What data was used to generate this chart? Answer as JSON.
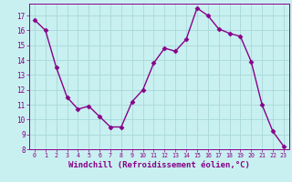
{
  "x": [
    0,
    1,
    2,
    3,
    4,
    5,
    6,
    7,
    8,
    9,
    10,
    11,
    12,
    13,
    14,
    15,
    16,
    17,
    18,
    19,
    20,
    21,
    22,
    23
  ],
  "y": [
    16.7,
    16.0,
    13.5,
    11.5,
    10.7,
    10.9,
    10.2,
    9.5,
    9.5,
    11.2,
    12.0,
    13.8,
    14.8,
    14.6,
    15.4,
    17.5,
    17.0,
    16.1,
    15.8,
    15.6,
    13.9,
    11.0,
    9.2,
    8.2
  ],
  "line_color": "#880088",
  "marker": "D",
  "marker_size": 2.5,
  "linewidth": 1.0,
  "xlabel": "Windchill (Refroidissement éolien,°C)",
  "xlabel_fontsize": 6.5,
  "bg_color": "#c8f0f0",
  "grid_color": "#a8d8d8",
  "tick_color": "#880088",
  "label_color": "#880088",
  "ylim": [
    8,
    17.8
  ],
  "xlim": [
    -0.5,
    23.5
  ],
  "yticks": [
    8,
    9,
    10,
    11,
    12,
    13,
    14,
    15,
    16,
    17
  ],
  "xticks": [
    0,
    1,
    2,
    3,
    4,
    5,
    6,
    7,
    8,
    9,
    10,
    11,
    12,
    13,
    14,
    15,
    16,
    17,
    18,
    19,
    20,
    21,
    22,
    23
  ]
}
